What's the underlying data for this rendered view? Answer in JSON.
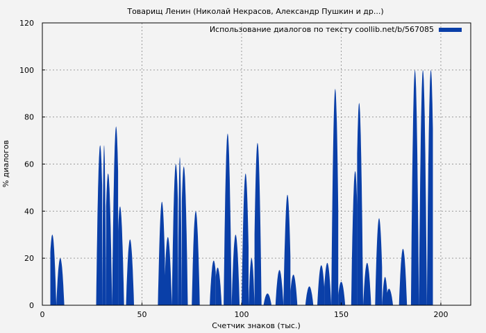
{
  "chart_data": {
    "type": "bar",
    "title": "Товарищ Ленин (Николай Некрасов, Александр Пушкин и др...)",
    "xlabel": "Счетчик знаков (тыс.)",
    "ylabel": "% диалогов",
    "xlim": [
      0,
      215
    ],
    "ylim": [
      0,
      120
    ],
    "xticks": [
      0,
      50,
      100,
      150,
      200
    ],
    "yticks": [
      0,
      20,
      40,
      60,
      80,
      100,
      120
    ],
    "grid": true,
    "legend_position": "top-right",
    "series": [
      {
        "name": "Использование диалогов по тексту coollib.net/b/567085",
        "color": "#0a3fa8",
        "peaks": [
          {
            "x": 5,
            "y": 30
          },
          {
            "x": 9,
            "y": 20
          },
          {
            "x": 29,
            "y": 68
          },
          {
            "x": 31,
            "y": 68
          },
          {
            "x": 33,
            "y": 56
          },
          {
            "x": 37,
            "y": 76
          },
          {
            "x": 39,
            "y": 42
          },
          {
            "x": 44,
            "y": 28
          },
          {
            "x": 60,
            "y": 44
          },
          {
            "x": 63,
            "y": 29
          },
          {
            "x": 67,
            "y": 60
          },
          {
            "x": 69,
            "y": 63
          },
          {
            "x": 71,
            "y": 59
          },
          {
            "x": 77,
            "y": 40
          },
          {
            "x": 86,
            "y": 19
          },
          {
            "x": 88,
            "y": 16
          },
          {
            "x": 93,
            "y": 73
          },
          {
            "x": 97,
            "y": 30
          },
          {
            "x": 102,
            "y": 56
          },
          {
            "x": 105,
            "y": 20
          },
          {
            "x": 108,
            "y": 69
          },
          {
            "x": 113,
            "y": 5
          },
          {
            "x": 119,
            "y": 15
          },
          {
            "x": 123,
            "y": 47
          },
          {
            "x": 126,
            "y": 13
          },
          {
            "x": 134,
            "y": 8
          },
          {
            "x": 140,
            "y": 17
          },
          {
            "x": 143,
            "y": 18
          },
          {
            "x": 147,
            "y": 92
          },
          {
            "x": 150,
            "y": 10
          },
          {
            "x": 157,
            "y": 57
          },
          {
            "x": 159,
            "y": 86
          },
          {
            "x": 163,
            "y": 18
          },
          {
            "x": 169,
            "y": 37
          },
          {
            "x": 172,
            "y": 12
          },
          {
            "x": 174,
            "y": 7
          },
          {
            "x": 181,
            "y": 24
          },
          {
            "x": 187,
            "y": 100
          },
          {
            "x": 191,
            "y": 100
          },
          {
            "x": 195,
            "y": 100
          }
        ]
      }
    ]
  }
}
